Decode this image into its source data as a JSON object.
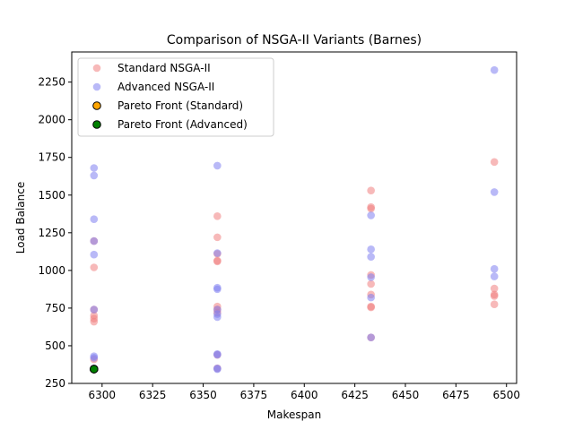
{
  "chart_data": {
    "type": "scatter",
    "title": "Comparison of NSGA-II Variants (Barnes)",
    "xlabel": "Makespan",
    "ylabel": "Load Balance",
    "xlim": [
      6285,
      6505
    ],
    "ylim": [
      250,
      2450
    ],
    "xticks": [
      6300,
      6325,
      6350,
      6375,
      6400,
      6425,
      6450,
      6475,
      6500
    ],
    "yticks": [
      250,
      500,
      750,
      1000,
      1250,
      1500,
      1750,
      2000,
      2250
    ],
    "grid": false,
    "legend_position": "upper-left",
    "series": [
      {
        "name": "Standard NSGA-II",
        "color": "#f08080",
        "opacity": 0.55,
        "points": [
          [
            6296,
            1020
          ],
          [
            6296,
            740
          ],
          [
            6296,
            700
          ],
          [
            6296,
            680
          ],
          [
            6296,
            660
          ],
          [
            6296,
            1195
          ],
          [
            6296,
            410
          ],
          [
            6296,
            350
          ],
          [
            6296,
            345
          ],
          [
            6357,
            1360
          ],
          [
            6357,
            1220
          ],
          [
            6357,
            1110
          ],
          [
            6357,
            1065
          ],
          [
            6357,
            1060
          ],
          [
            6357,
            760
          ],
          [
            6357,
            740
          ],
          [
            6357,
            720
          ],
          [
            6357,
            440
          ],
          [
            6357,
            350
          ],
          [
            6433,
            1530
          ],
          [
            6433,
            1420
          ],
          [
            6433,
            1410
          ],
          [
            6433,
            970
          ],
          [
            6433,
            910
          ],
          [
            6433,
            840
          ],
          [
            6433,
            760
          ],
          [
            6433,
            755
          ],
          [
            6433,
            555
          ],
          [
            6494,
            1720
          ],
          [
            6494,
            880
          ],
          [
            6494,
            840
          ],
          [
            6494,
            830
          ],
          [
            6494,
            775
          ]
        ]
      },
      {
        "name": "Advanced NSGA-II",
        "color": "#8080f0",
        "opacity": 0.55,
        "points": [
          [
            6296,
            1680
          ],
          [
            6296,
            1630
          ],
          [
            6296,
            1340
          ],
          [
            6296,
            1105
          ],
          [
            6296,
            1195
          ],
          [
            6296,
            740
          ],
          [
            6296,
            430
          ],
          [
            6296,
            420
          ],
          [
            6296,
            350
          ],
          [
            6296,
            345
          ],
          [
            6357,
            1695
          ],
          [
            6357,
            1115
          ],
          [
            6357,
            885
          ],
          [
            6357,
            875
          ],
          [
            6357,
            740
          ],
          [
            6357,
            710
          ],
          [
            6357,
            690
          ],
          [
            6357,
            445
          ],
          [
            6357,
            440
          ],
          [
            6357,
            350
          ],
          [
            6357,
            345
          ],
          [
            6433,
            1365
          ],
          [
            6433,
            1140
          ],
          [
            6433,
            1090
          ],
          [
            6433,
            955
          ],
          [
            6433,
            820
          ],
          [
            6433,
            555
          ],
          [
            6494,
            2330
          ],
          [
            6494,
            1520
          ],
          [
            6494,
            1010
          ],
          [
            6494,
            960
          ]
        ]
      },
      {
        "name": "Pareto Front (Standard)",
        "color": "#ffa500",
        "opacity": 1,
        "points": [
          [
            6296,
            345
          ]
        ]
      },
      {
        "name": "Pareto Front (Advanced)",
        "color": "#008000",
        "opacity": 1,
        "points": [
          [
            6296,
            345
          ]
        ]
      }
    ]
  }
}
